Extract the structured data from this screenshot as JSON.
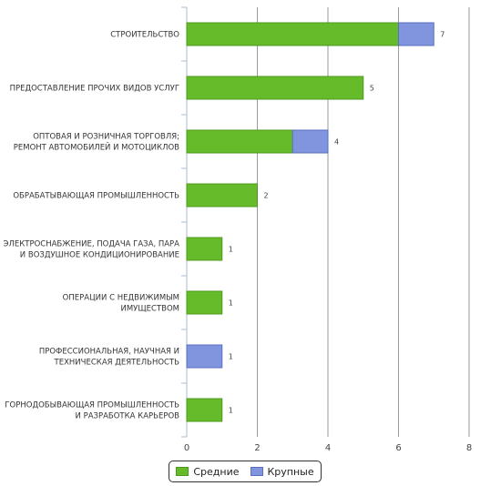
{
  "chart_data": {
    "type": "bar",
    "orientation": "horizontal",
    "stacked": true,
    "categories": [
      [
        "СТРОИТЕЛЬСТВО"
      ],
      [
        "ПРЕДОСТАВЛЕНИЕ ПРОЧИХ ВИДОВ УСЛУГ"
      ],
      [
        "ОПТОВАЯ И РОЗНИЧНАЯ ТОРГОВЛЯ;",
        "РЕМОНТ АВТОМОБИЛЕЙ И МОТОЦИКЛОВ"
      ],
      [
        "ОБРАБАТЫВАЮЩАЯ ПРОМЫШЛЕННОСТЬ"
      ],
      [
        "ЭЛЕКТРОСНАБЖЕНИЕ, ПОДАЧА ГАЗА, ПАРА",
        "И ВОЗДУШНОЕ КОНДИЦИОНИРОВАНИЕ"
      ],
      [
        "ОПЕРАЦИИ С НЕДВИЖИМЫМ",
        "ИМУЩЕСТВОМ"
      ],
      [
        "ПРОФЕССИОНАЛЬНАЯ, НАУЧНАЯ И",
        "ТЕХНИЧЕСКАЯ ДЕЯТЕЛЬНОСТЬ"
      ],
      [
        "ГОРНОДОБЫВАЮЩАЯ ПРОМЫШЛЕННОСТЬ",
        "И РАЗРАБОТКА КАРЬЕРОВ"
      ]
    ],
    "series": [
      {
        "name": "Средние",
        "color": "#66bb2a",
        "stroke": "#4e9a1c",
        "values": [
          6,
          5,
          3,
          2,
          1,
          1,
          0,
          1
        ]
      },
      {
        "name": "Крупные",
        "color": "#8095de",
        "stroke": "#5a6fc0",
        "values": [
          1,
          0,
          1,
          0,
          0,
          0,
          1,
          0
        ]
      }
    ],
    "totals": [
      7,
      5,
      4,
      2,
      1,
      1,
      1,
      1
    ],
    "xlim": [
      0,
      8
    ],
    "xticks": [
      0,
      2,
      4,
      6,
      8
    ],
    "grid": true,
    "legend_position": "bottom"
  }
}
